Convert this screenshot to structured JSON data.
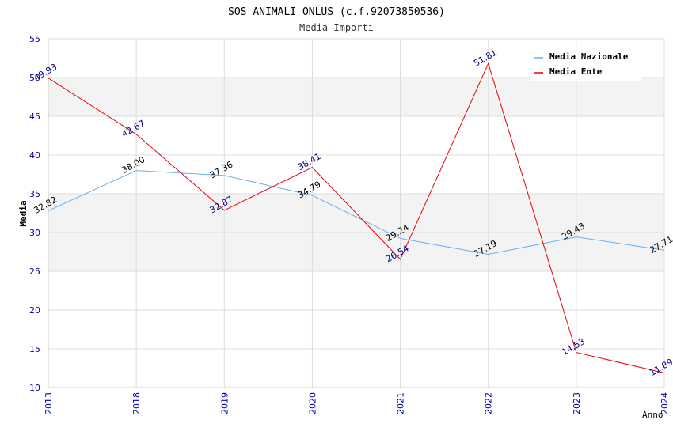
{
  "chart_data": {
    "type": "line",
    "title": "SOS ANIMALI ONLUS (c.f.92073850536)",
    "subtitle": "Media Importi",
    "xlabel": "Anno",
    "ylabel": "Media",
    "ylim": [
      10,
      55
    ],
    "yticks": [
      "10",
      "15",
      "20",
      "25",
      "30",
      "35",
      "40",
      "45",
      "50",
      "55"
    ],
    "categories": [
      "2013",
      "2018",
      "2019",
      "2020",
      "2021",
      "2022",
      "2023",
      "2024"
    ],
    "grid": true,
    "legend_position": "top-right",
    "series": [
      {
        "name": "Media Nazionale",
        "color": "#6aaee8",
        "label_color": "#000000",
        "values": [
          32.82,
          38.0,
          37.36,
          34.79,
          29.24,
          27.19,
          29.43,
          27.71
        ],
        "labels": [
          "32.82",
          "38.00",
          "37.36",
          "34.79",
          "29.24",
          "27.19",
          "29.43",
          "27.71"
        ]
      },
      {
        "name": "Media Ente",
        "color": "#e8000b",
        "label_color": "#00008b",
        "values": [
          49.93,
          42.67,
          32.87,
          38.41,
          26.54,
          51.81,
          14.53,
          11.89
        ],
        "labels": [
          "49.93",
          "42.67",
          "32.87",
          "38.41",
          "26.54",
          "51.81",
          "14.53",
          "11.89"
        ]
      }
    ],
    "colors": {
      "axis_text": "#0000aa",
      "band": "#f3f3f3",
      "grid": "#dcdcdc"
    }
  }
}
